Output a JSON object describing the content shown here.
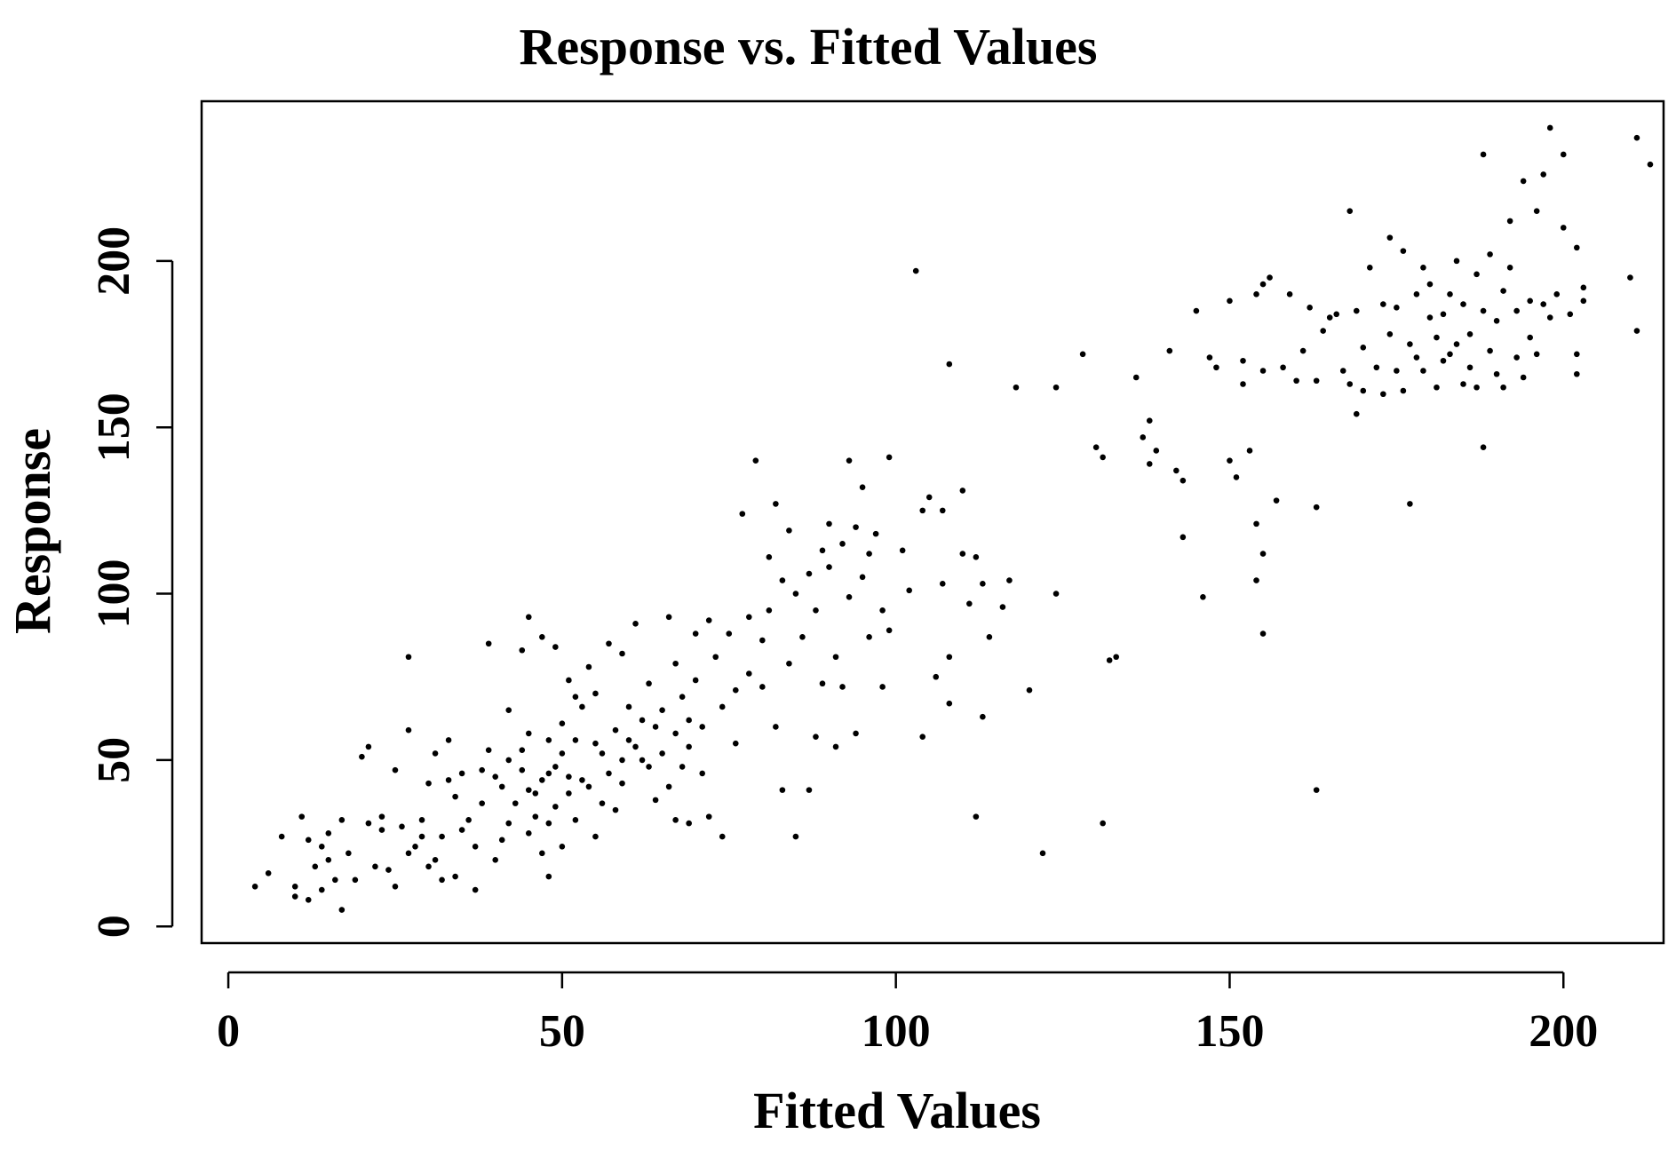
{
  "chart_data": {
    "type": "scatter",
    "title": "Response vs. Fitted Values",
    "xlabel": "Fitted Values",
    "ylabel": "Response",
    "xlim": [
      -4,
      215
    ],
    "ylim": [
      -5,
      248
    ],
    "xticks": [
      0,
      50,
      100,
      150,
      200
    ],
    "yticks": [
      0,
      50,
      100,
      150,
      200
    ],
    "xtick_labels": [
      "0",
      "50",
      "100",
      "150",
      "200"
    ],
    "ytick_labels": [
      "0",
      "50",
      "100",
      "150",
      "200"
    ],
    "grid": false,
    "legend": "none",
    "point_color": "#000000",
    "series": [
      {
        "points": [
          [
            4,
            12
          ],
          [
            6,
            16
          ],
          [
            8,
            27
          ],
          [
            10,
            12
          ],
          [
            10,
            9
          ],
          [
            11,
            33
          ],
          [
            12,
            26
          ],
          [
            12,
            8
          ],
          [
            13,
            18
          ],
          [
            14,
            24
          ],
          [
            14,
            11
          ],
          [
            15,
            20
          ],
          [
            15,
            28
          ],
          [
            16,
            14
          ],
          [
            17,
            5
          ],
          [
            17,
            32
          ],
          [
            18,
            22
          ],
          [
            19,
            14
          ],
          [
            20,
            51
          ],
          [
            21,
            54
          ],
          [
            21,
            31
          ],
          [
            22,
            18
          ],
          [
            23,
            29
          ],
          [
            23,
            33
          ],
          [
            24,
            17
          ],
          [
            25,
            12
          ],
          [
            25,
            47
          ],
          [
            26,
            30
          ],
          [
            27,
            22
          ],
          [
            27,
            81
          ],
          [
            27,
            59
          ],
          [
            28,
            24
          ],
          [
            29,
            27
          ],
          [
            29,
            32
          ],
          [
            30,
            18
          ],
          [
            30,
            43
          ],
          [
            31,
            20
          ],
          [
            31,
            52
          ],
          [
            32,
            27
          ],
          [
            32,
            14
          ],
          [
            33,
            44
          ],
          [
            33,
            56
          ],
          [
            34,
            15
          ],
          [
            34,
            39
          ],
          [
            35,
            29
          ],
          [
            35,
            46
          ],
          [
            36,
            32
          ],
          [
            37,
            24
          ],
          [
            37,
            11
          ],
          [
            38,
            37
          ],
          [
            38,
            47
          ],
          [
            39,
            85
          ],
          [
            39,
            53
          ],
          [
            40,
            20
          ],
          [
            40,
            45
          ],
          [
            41,
            42
          ],
          [
            41,
            26
          ],
          [
            42,
            50
          ],
          [
            42,
            31
          ],
          [
            42,
            65
          ],
          [
            43,
            37
          ],
          [
            44,
            53
          ],
          [
            44,
            47
          ],
          [
            44,
            83
          ],
          [
            45,
            28
          ],
          [
            45,
            41
          ],
          [
            45,
            58
          ],
          [
            45,
            93
          ],
          [
            46,
            33
          ],
          [
            46,
            40
          ],
          [
            47,
            44
          ],
          [
            47,
            22
          ],
          [
            47,
            87
          ],
          [
            48,
            31
          ],
          [
            48,
            46
          ],
          [
            48,
            56
          ],
          [
            48,
            15
          ],
          [
            49,
            36
          ],
          [
            49,
            48
          ],
          [
            49,
            84
          ],
          [
            50,
            52
          ],
          [
            50,
            61
          ],
          [
            50,
            24
          ],
          [
            51,
            45
          ],
          [
            51,
            74
          ],
          [
            51,
            40
          ],
          [
            52,
            69
          ],
          [
            52,
            32
          ],
          [
            52,
            56
          ],
          [
            53,
            44
          ],
          [
            53,
            66
          ],
          [
            54,
            42
          ],
          [
            54,
            78
          ],
          [
            55,
            55
          ],
          [
            55,
            27
          ],
          [
            55,
            70
          ],
          [
            56,
            37
          ],
          [
            56,
            52
          ],
          [
            57,
            85
          ],
          [
            57,
            46
          ],
          [
            58,
            59
          ],
          [
            58,
            35
          ],
          [
            59,
            50
          ],
          [
            59,
            43
          ],
          [
            59,
            82
          ],
          [
            60,
            66
          ],
          [
            60,
            56
          ],
          [
            61,
            54
          ],
          [
            61,
            91
          ],
          [
            62,
            62
          ],
          [
            62,
            50
          ],
          [
            63,
            48
          ],
          [
            63,
            73
          ],
          [
            64,
            60
          ],
          [
            64,
            38
          ],
          [
            65,
            65
          ],
          [
            65,
            52
          ],
          [
            66,
            42
          ],
          [
            66,
            93
          ],
          [
            67,
            58
          ],
          [
            67,
            32
          ],
          [
            67,
            79
          ],
          [
            68,
            48
          ],
          [
            68,
            69
          ],
          [
            69,
            62
          ],
          [
            69,
            54
          ],
          [
            69,
            31
          ],
          [
            70,
            74
          ],
          [
            70,
            88
          ],
          [
            71,
            46
          ],
          [
            71,
            60
          ],
          [
            72,
            33
          ],
          [
            72,
            92
          ],
          [
            73,
            81
          ],
          [
            74,
            27
          ],
          [
            74,
            66
          ],
          [
            75,
            88
          ],
          [
            76,
            55
          ],
          [
            76,
            71
          ],
          [
            77,
            124
          ],
          [
            78,
            93
          ],
          [
            78,
            76
          ],
          [
            79,
            140
          ],
          [
            80,
            72
          ],
          [
            80,
            86
          ],
          [
            81,
            111
          ],
          [
            81,
            95
          ],
          [
            82,
            60
          ],
          [
            82,
            127
          ],
          [
            83,
            41
          ],
          [
            83,
            104
          ],
          [
            84,
            119
          ],
          [
            84,
            79
          ],
          [
            85,
            27
          ],
          [
            85,
            100
          ],
          [
            86,
            87
          ],
          [
            87,
            106
          ],
          [
            87,
            41
          ],
          [
            88,
            95
          ],
          [
            88,
            57
          ],
          [
            89,
            113
          ],
          [
            89,
            73
          ],
          [
            90,
            121
          ],
          [
            90,
            108
          ],
          [
            91,
            81
          ],
          [
            91,
            54
          ],
          [
            92,
            115
          ],
          [
            92,
            72
          ],
          [
            93,
            140
          ],
          [
            93,
            99
          ],
          [
            94,
            120
          ],
          [
            94,
            58
          ],
          [
            95,
            132
          ],
          [
            95,
            105
          ],
          [
            96,
            87
          ],
          [
            96,
            112
          ],
          [
            97,
            118
          ],
          [
            98,
            72
          ],
          [
            98,
            95
          ],
          [
            99,
            141
          ],
          [
            99,
            89
          ],
          [
            101,
            113
          ],
          [
            102,
            101
          ],
          [
            103,
            197
          ],
          [
            104,
            57
          ],
          [
            104,
            125
          ],
          [
            105,
            129
          ],
          [
            106,
            75
          ],
          [
            107,
            125
          ],
          [
            107,
            103
          ],
          [
            108,
            169
          ],
          [
            108,
            81
          ],
          [
            108,
            67
          ],
          [
            110,
            131
          ],
          [
            110,
            112
          ],
          [
            111,
            97
          ],
          [
            112,
            33
          ],
          [
            112,
            111
          ],
          [
            113,
            63
          ],
          [
            113,
            103
          ],
          [
            114,
            87
          ],
          [
            116,
            96
          ],
          [
            117,
            104
          ],
          [
            118,
            162
          ],
          [
            120,
            71
          ],
          [
            122,
            22
          ],
          [
            124,
            162
          ],
          [
            124,
            100
          ],
          [
            128,
            172
          ],
          [
            130,
            144
          ],
          [
            131,
            31
          ],
          [
            131,
            141
          ],
          [
            132,
            80
          ],
          [
            133,
            81
          ],
          [
            136,
            165
          ],
          [
            137,
            147
          ],
          [
            138,
            152
          ],
          [
            138,
            139
          ],
          [
            139,
            143
          ],
          [
            141,
            173
          ],
          [
            142,
            137
          ],
          [
            143,
            117
          ],
          [
            143,
            134
          ],
          [
            145,
            185
          ],
          [
            146,
            99
          ],
          [
            147,
            171
          ],
          [
            148,
            168
          ],
          [
            150,
            140
          ],
          [
            150,
            188
          ],
          [
            151,
            135
          ],
          [
            152,
            170
          ],
          [
            152,
            163
          ],
          [
            153,
            143
          ],
          [
            154,
            121
          ],
          [
            154,
            104
          ],
          [
            154,
            190
          ],
          [
            155,
            88
          ],
          [
            155,
            112
          ],
          [
            155,
            167
          ],
          [
            155,
            193
          ],
          [
            156,
            195
          ],
          [
            157,
            128
          ],
          [
            158,
            168
          ],
          [
            159,
            190
          ],
          [
            160,
            164
          ],
          [
            161,
            173
          ],
          [
            162,
            186
          ],
          [
            163,
            41
          ],
          [
            163,
            164
          ],
          [
            163,
            126
          ],
          [
            164,
            179
          ],
          [
            165,
            183
          ],
          [
            166,
            184
          ],
          [
            167,
            167
          ],
          [
            168,
            163
          ],
          [
            168,
            215
          ],
          [
            169,
            154
          ],
          [
            169,
            185
          ],
          [
            170,
            161
          ],
          [
            170,
            174
          ],
          [
            171,
            198
          ],
          [
            172,
            168
          ],
          [
            173,
            160
          ],
          [
            173,
            187
          ],
          [
            174,
            207
          ],
          [
            174,
            178
          ],
          [
            175,
            167
          ],
          [
            175,
            186
          ],
          [
            176,
            161
          ],
          [
            176,
            203
          ],
          [
            177,
            127
          ],
          [
            177,
            175
          ],
          [
            178,
            190
          ],
          [
            178,
            171
          ],
          [
            179,
            198
          ],
          [
            179,
            167
          ],
          [
            180,
            183
          ],
          [
            180,
            193
          ],
          [
            181,
            177
          ],
          [
            181,
            162
          ],
          [
            182,
            170
          ],
          [
            182,
            184
          ],
          [
            183,
            190
          ],
          [
            183,
            172
          ],
          [
            184,
            175
          ],
          [
            184,
            200
          ],
          [
            185,
            163
          ],
          [
            185,
            187
          ],
          [
            186,
            168
          ],
          [
            186,
            178
          ],
          [
            187,
            196
          ],
          [
            187,
            162
          ],
          [
            188,
            185
          ],
          [
            188,
            232
          ],
          [
            188,
            144
          ],
          [
            189,
            173
          ],
          [
            189,
            202
          ],
          [
            190,
            166
          ],
          [
            190,
            182
          ],
          [
            191,
            191
          ],
          [
            191,
            162
          ],
          [
            192,
            198
          ],
          [
            192,
            212
          ],
          [
            193,
            171
          ],
          [
            193,
            185
          ],
          [
            194,
            224
          ],
          [
            194,
            165
          ],
          [
            195,
            177
          ],
          [
            195,
            188
          ],
          [
            196,
            215
          ],
          [
            196,
            172
          ],
          [
            197,
            187
          ],
          [
            197,
            226
          ],
          [
            198,
            240
          ],
          [
            198,
            183
          ],
          [
            199,
            190
          ],
          [
            200,
            210
          ],
          [
            200,
            232
          ],
          [
            201,
            184
          ],
          [
            202,
            172
          ],
          [
            202,
            204
          ],
          [
            202,
            166
          ],
          [
            203,
            192
          ],
          [
            203,
            188
          ],
          [
            210,
            195
          ],
          [
            211,
            179
          ],
          [
            211,
            237
          ],
          [
            213,
            229
          ]
        ]
      }
    ]
  }
}
